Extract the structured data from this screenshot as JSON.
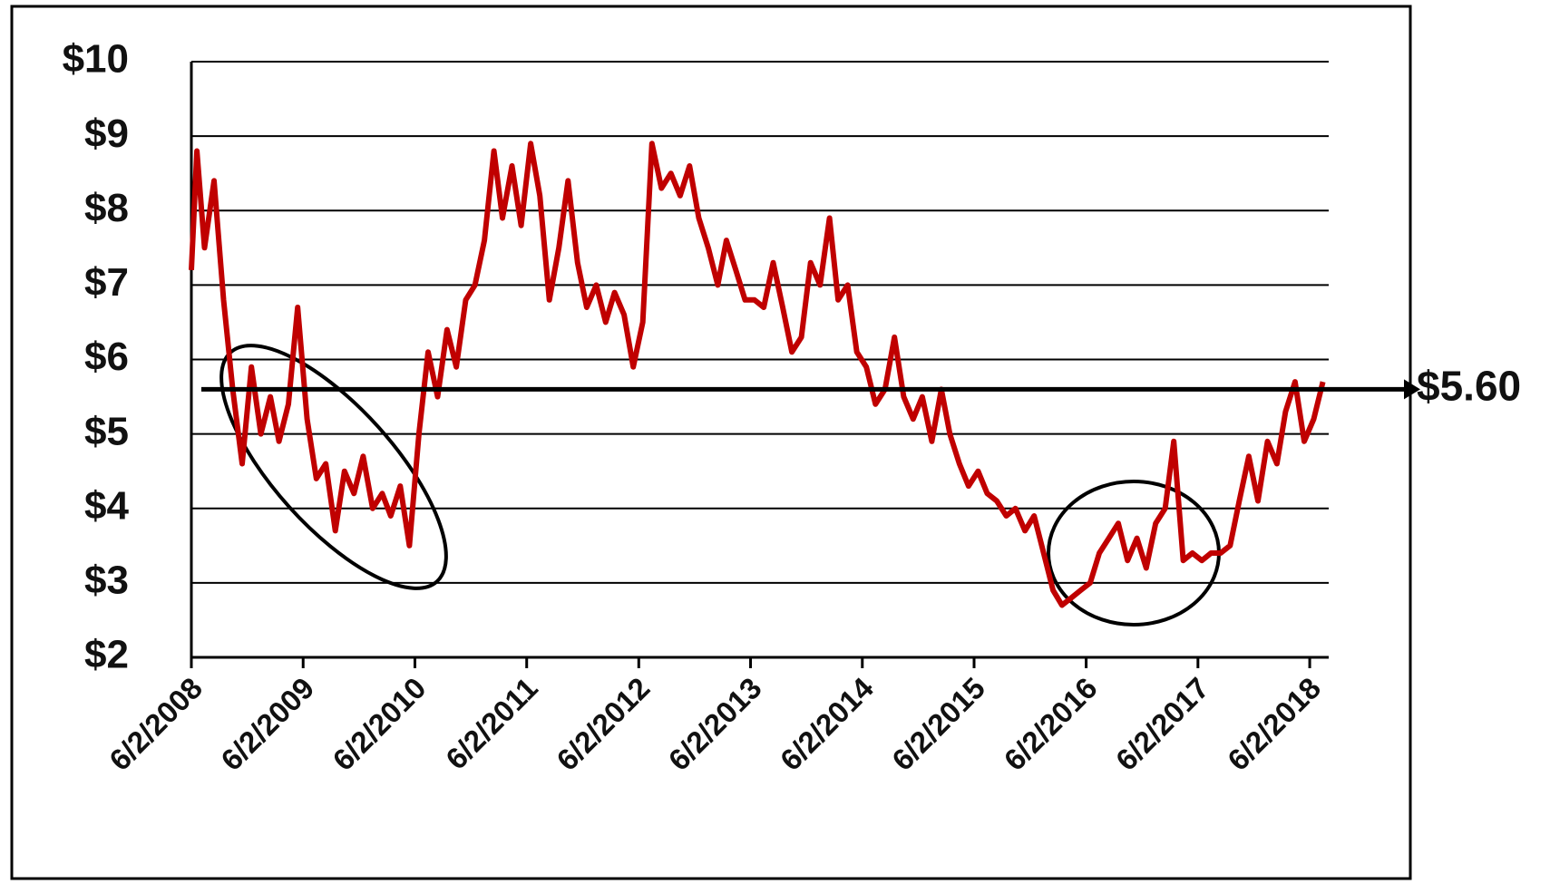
{
  "chart_data": {
    "type": "line",
    "x": [
      "2008-06-02",
      "2008-06-20",
      "2008-07-15",
      "2008-08-15",
      "2008-09-15",
      "2008-10-15",
      "2008-11-15",
      "2008-12-15",
      "2009-01-15",
      "2009-02-15",
      "2009-03-15",
      "2009-04-15",
      "2009-05-15",
      "2009-06-15",
      "2009-07-15",
      "2009-08-15",
      "2009-09-15",
      "2009-10-15",
      "2009-11-15",
      "2009-12-15",
      "2010-01-15",
      "2010-02-15",
      "2010-03-15",
      "2010-04-15",
      "2010-05-15",
      "2010-06-15",
      "2010-07-15",
      "2010-08-15",
      "2010-09-15",
      "2010-10-15",
      "2010-11-15",
      "2010-12-15",
      "2011-01-15",
      "2011-02-15",
      "2011-03-15",
      "2011-04-15",
      "2011-05-15",
      "2011-06-15",
      "2011-07-15",
      "2011-08-15",
      "2011-09-15",
      "2011-10-15",
      "2011-11-15",
      "2011-12-15",
      "2012-01-15",
      "2012-02-15",
      "2012-03-15",
      "2012-04-15",
      "2012-05-15",
      "2012-06-15",
      "2012-07-15",
      "2012-08-15",
      "2012-09-15",
      "2012-10-15",
      "2012-11-15",
      "2012-12-15",
      "2013-01-15",
      "2013-02-15",
      "2013-03-15",
      "2013-04-15",
      "2013-05-15",
      "2013-06-15",
      "2013-07-15",
      "2013-08-15",
      "2013-09-15",
      "2013-10-15",
      "2013-11-15",
      "2013-12-15",
      "2014-01-15",
      "2014-02-15",
      "2014-03-15",
      "2014-04-15",
      "2014-05-15",
      "2014-06-15",
      "2014-07-15",
      "2014-08-15",
      "2014-09-15",
      "2014-10-15",
      "2014-11-15",
      "2014-12-15",
      "2015-01-15",
      "2015-02-15",
      "2015-03-15",
      "2015-04-15",
      "2015-05-15",
      "2015-06-15",
      "2015-07-15",
      "2015-08-15",
      "2015-09-15",
      "2015-10-15",
      "2015-11-15",
      "2015-12-15",
      "2016-01-15",
      "2016-02-15",
      "2016-03-15",
      "2016-04-15",
      "2016-05-15",
      "2016-06-15",
      "2016-07-15",
      "2016-08-15",
      "2016-09-15",
      "2016-10-15",
      "2016-11-15",
      "2016-12-15",
      "2017-01-15",
      "2017-02-15",
      "2017-03-15",
      "2017-04-15",
      "2017-05-15",
      "2017-06-15",
      "2017-07-15",
      "2017-08-15",
      "2017-09-15",
      "2017-10-15",
      "2017-11-15",
      "2017-12-15",
      "2018-01-15",
      "2018-02-15",
      "2018-03-15",
      "2018-04-15",
      "2018-05-15",
      "2018-06-15",
      "2018-07-15"
    ],
    "values": [
      7.2,
      8.8,
      7.5,
      8.4,
      6.8,
      5.6,
      4.6,
      5.9,
      5.0,
      5.5,
      4.9,
      5.4,
      6.7,
      5.2,
      4.4,
      4.6,
      3.7,
      4.5,
      4.2,
      4.7,
      4.0,
      4.2,
      3.9,
      4.3,
      3.5,
      5.0,
      6.1,
      5.5,
      6.4,
      5.9,
      6.8,
      7.0,
      7.6,
      8.8,
      7.9,
      8.6,
      7.8,
      8.9,
      8.2,
      6.8,
      7.5,
      8.4,
      7.3,
      6.7,
      7.0,
      6.5,
      6.9,
      6.6,
      5.9,
      6.5,
      8.9,
      8.3,
      8.5,
      8.2,
      8.6,
      7.9,
      7.5,
      7.0,
      7.6,
      7.2,
      6.8,
      6.8,
      6.7,
      7.3,
      6.7,
      6.1,
      6.3,
      7.3,
      7.0,
      7.9,
      6.8,
      7.0,
      6.1,
      5.9,
      5.4,
      5.6,
      6.3,
      5.5,
      5.2,
      5.5,
      4.9,
      5.6,
      5.0,
      4.6,
      4.3,
      4.5,
      4.2,
      4.1,
      3.9,
      4.0,
      3.7,
      3.9,
      3.4,
      2.9,
      2.7,
      2.8,
      2.9,
      3.0,
      3.4,
      3.6,
      3.8,
      3.3,
      3.6,
      3.2,
      3.8,
      4.0,
      4.9,
      3.3,
      3.4,
      3.3,
      3.4,
      3.4,
      3.5,
      4.1,
      4.7,
      4.1,
      4.9,
      4.6,
      5.3,
      5.7,
      4.9,
      5.2,
      5.7
    ],
    "color": "#c00000",
    "xlim": [
      "2008-06-02",
      "2018-08-03"
    ],
    "xticks": [
      {
        "value": "2008-06-02",
        "label": "6/2/2008"
      },
      {
        "value": "2009-06-02",
        "label": "6/2/2009"
      },
      {
        "value": "2010-06-02",
        "label": "6/2/2010"
      },
      {
        "value": "2011-06-02",
        "label": "6/2/2011"
      },
      {
        "value": "2012-06-02",
        "label": "6/2/2012"
      },
      {
        "value": "2013-06-02",
        "label": "6/2/2013"
      },
      {
        "value": "2014-06-02",
        "label": "6/2/2014"
      },
      {
        "value": "2015-06-02",
        "label": "6/2/2015"
      },
      {
        "value": "2016-06-02",
        "label": "6/2/2016"
      },
      {
        "value": "2017-06-02",
        "label": "6/2/2017"
      },
      {
        "value": "2018-06-02",
        "label": "6/2/2018"
      }
    ],
    "ylim": [
      2,
      10
    ],
    "yticks": [
      {
        "value": 2,
        "label": "$2"
      },
      {
        "value": 3,
        "label": "$3"
      },
      {
        "value": 4,
        "label": "$4"
      },
      {
        "value": 5,
        "label": "$5"
      },
      {
        "value": 6,
        "label": "$6"
      },
      {
        "value": 7,
        "label": "$7"
      },
      {
        "value": 8,
        "label": "$8"
      },
      {
        "value": 9,
        "label": "$9"
      },
      {
        "value": 10,
        "label": "$10"
      }
    ],
    "grid": true,
    "reference_line": {
      "value": 5.6,
      "label": "$5.60"
    }
  }
}
